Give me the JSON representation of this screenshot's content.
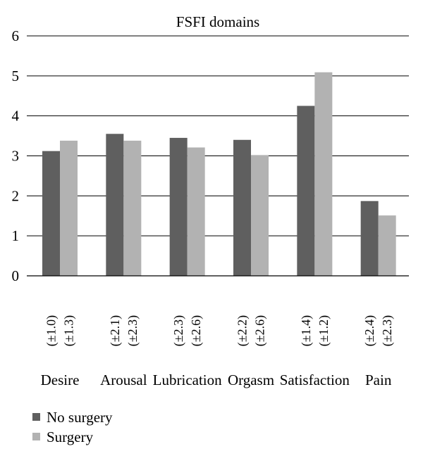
{
  "chart_data": {
    "type": "bar",
    "title": "FSFI domains",
    "categories": [
      "Desire",
      "Arousal",
      "Lubrication",
      "Orgasm",
      "Satisfaction",
      "Pain"
    ],
    "series": [
      {
        "name": "No surgery",
        "color": "#5f5f5f",
        "values": [
          3.12,
          3.55,
          3.45,
          3.4,
          4.25,
          1.87
        ],
        "sd_labels": [
          "(±1.0)",
          "(±2.1)",
          "(±2.3)",
          "(±2.2)",
          "(±1.4)",
          "(±2.4)"
        ]
      },
      {
        "name": "Surgery",
        "color": "#b2b2b2",
        "values": [
          3.38,
          3.38,
          3.21,
          3.02,
          5.09,
          1.51
        ],
        "sd_labels": [
          "(±1.3)",
          "(±2.3)",
          "(±2.6)",
          "(±2.6)",
          "(±1.2)",
          "(±2.3)"
        ]
      }
    ],
    "y_ticks": [
      "0",
      "1",
      "2",
      "3",
      "4",
      "5",
      "6"
    ],
    "ylim": [
      0,
      6
    ],
    "grid": true,
    "legend_position": "bottom-left"
  }
}
